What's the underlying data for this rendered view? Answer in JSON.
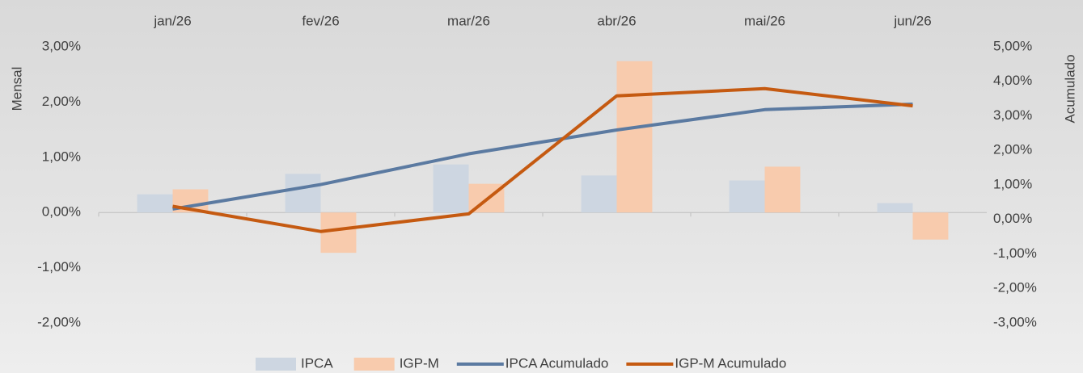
{
  "chart_data": {
    "type": "bar_line",
    "categories": [
      "jan/26",
      "fev/26",
      "mar/26",
      "abr/26",
      "mai/26",
      "jun/26"
    ],
    "ylabel": "Mensal",
    "y2label": "Acumulado",
    "ylim": [
      -2,
      3
    ],
    "yticks": [
      {
        "value": -2,
        "label": "-2,00%"
      },
      {
        "value": -1,
        "label": "-1,00%"
      },
      {
        "value": 0,
        "label": "0,00%"
      },
      {
        "value": 1,
        "label": "1,00%"
      },
      {
        "value": 2,
        "label": "2,00%"
      },
      {
        "value": 3,
        "label": "3,00%"
      }
    ],
    "y2lim": [
      -3,
      5
    ],
    "y2ticks": [
      {
        "value": -3,
        "label": "-3,00%"
      },
      {
        "value": -2,
        "label": "-2,00%"
      },
      {
        "value": -1,
        "label": "-1,00%"
      },
      {
        "value": 0,
        "label": "0,00%"
      },
      {
        "value": 1,
        "label": "1,00%"
      },
      {
        "value": 2,
        "label": "2,00%"
      },
      {
        "value": 3,
        "label": "3,00%"
      },
      {
        "value": 4,
        "label": "4,00%"
      },
      {
        "value": 5,
        "label": "5,00%"
      }
    ],
    "series": [
      {
        "name": "IPCA",
        "kind": "bar",
        "color": "#cdd6e1",
        "values": [
          0.33,
          0.7,
          0.87,
          0.67,
          0.58,
          0.17
        ]
      },
      {
        "name": "IGP-M",
        "kind": "bar",
        "color": "#f8cbad",
        "values": [
          0.42,
          -0.73,
          0.52,
          2.74,
          0.83,
          -0.49
        ]
      },
      {
        "name": "IPCA Acumulado",
        "kind": "line",
        "axis": "y2",
        "color": "#5b7aa1",
        "values": [
          0.3,
          1.01,
          1.9,
          2.59,
          3.18,
          3.34
        ]
      },
      {
        "name": "IGP-M Acumulado",
        "kind": "line",
        "axis": "y2",
        "color": "#c55a11",
        "values": [
          0.38,
          -0.35,
          0.16,
          3.58,
          3.79,
          3.29
        ]
      }
    ]
  }
}
